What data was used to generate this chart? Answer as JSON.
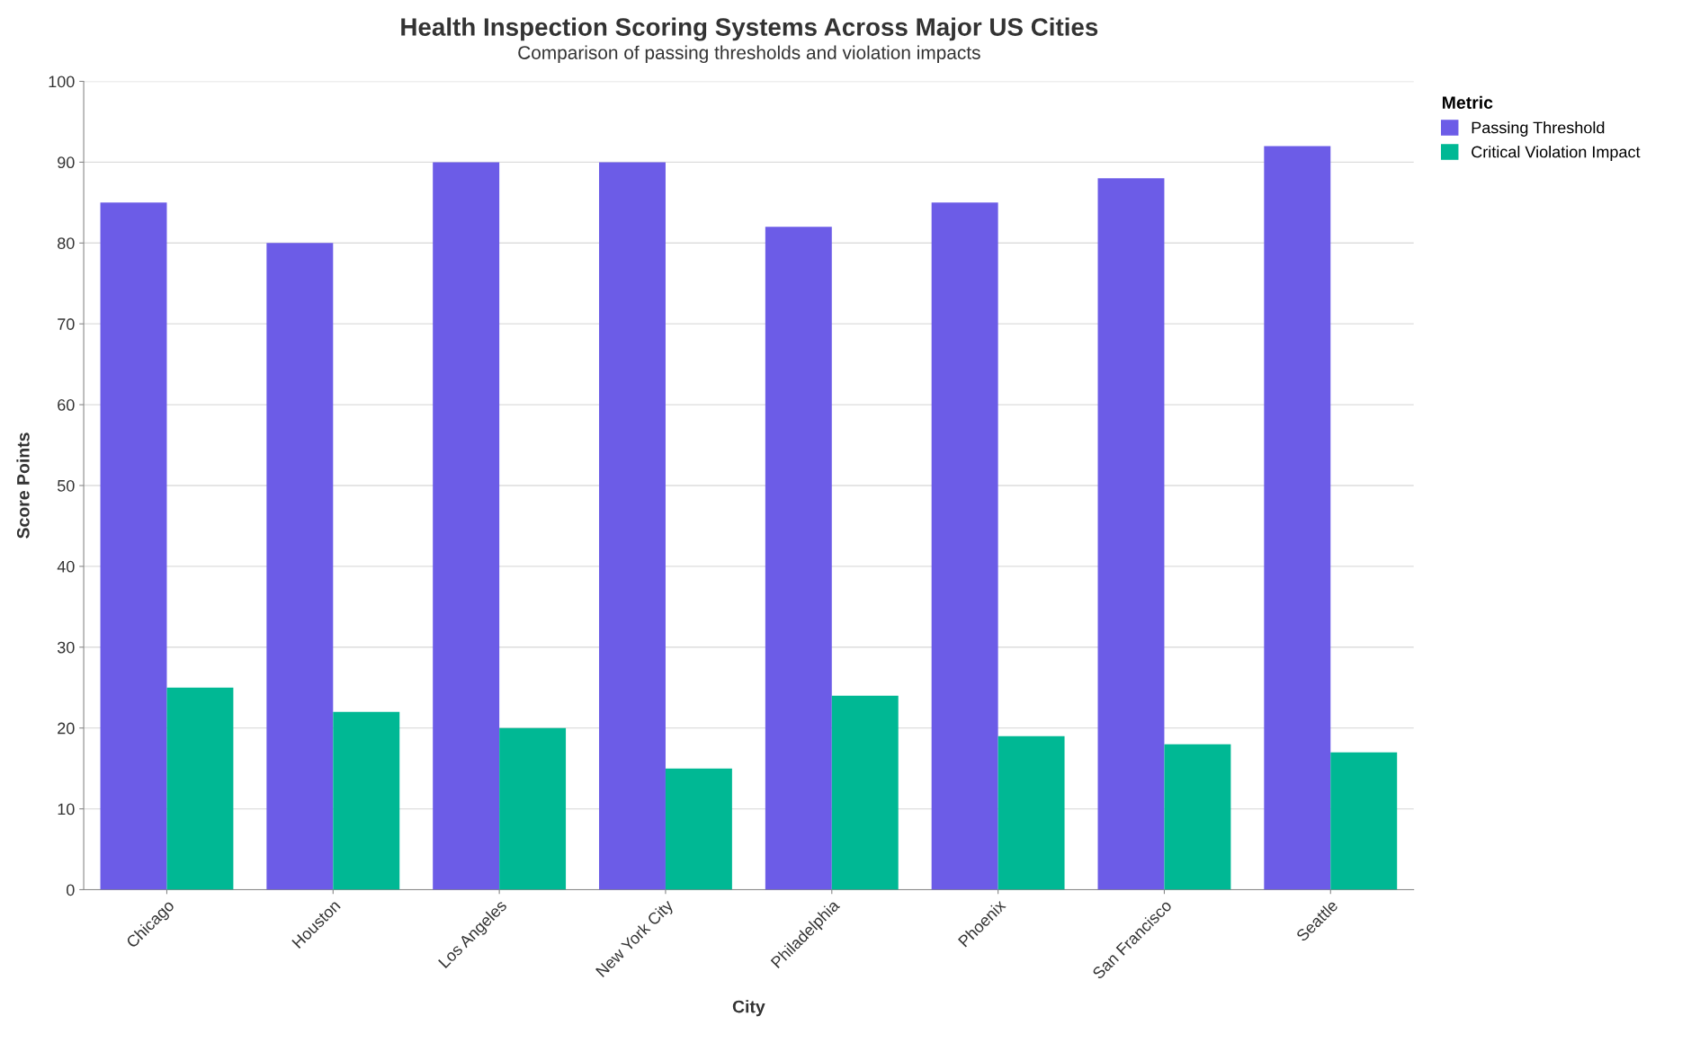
{
  "chart_data": {
    "type": "bar",
    "title": "Health Inspection Scoring Systems Across Major US Cities",
    "subtitle": "Comparison of passing thresholds and violation impacts",
    "xlabel": "City",
    "ylabel": "Score Points",
    "legend_title": "Metric",
    "categories": [
      "Chicago",
      "Houston",
      "Los Angeles",
      "New York City",
      "Philadelphia",
      "Phoenix",
      "San Francisco",
      "Seattle"
    ],
    "series": [
      {
        "name": "Passing Threshold",
        "color": "#6c5ce7",
        "values": [
          85,
          80,
          90,
          90,
          82,
          85,
          88,
          92
        ]
      },
      {
        "name": "Critical Violation Impact",
        "color": "#00b894",
        "values": [
          25,
          22,
          20,
          15,
          24,
          19,
          18,
          17
        ]
      }
    ],
    "ylim": [
      0,
      100
    ],
    "yticks": [
      0,
      10,
      20,
      30,
      40,
      50,
      60,
      70,
      80,
      90,
      100
    ],
    "grid": "y",
    "legend": "top right"
  }
}
